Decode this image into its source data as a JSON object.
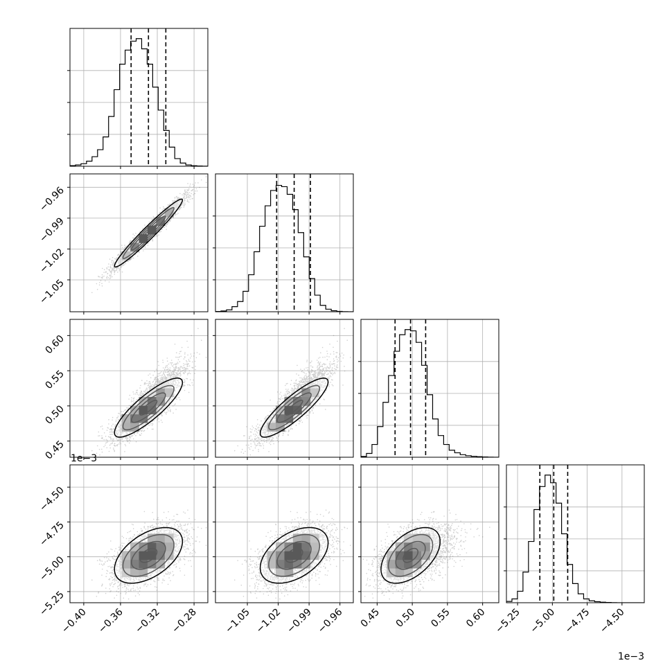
{
  "chart_data": {
    "type": "corner",
    "parameters": [
      {
        "index": 0,
        "range": [
          -0.415,
          -0.265
        ],
        "ticks": [
          -0.4,
          -0.36,
          -0.32,
          -0.28
        ],
        "tick_labels": [
          "−0.40",
          "−0.36",
          "−0.32",
          "−0.28"
        ],
        "quantiles": [
          -0.3485,
          -0.3296,
          -0.3107
        ],
        "mean": -0.3296,
        "sd": 0.0185
      },
      {
        "index": 1,
        "range": [
          -1.081,
          -0.947
        ],
        "ticks": [
          -1.05,
          -1.02,
          -0.99,
          -0.96
        ],
        "tick_labels": [
          "−1.05",
          "−1.02",
          "−0.99",
          "−0.96"
        ],
        "quantiles": [
          -1.0215,
          -1.0045,
          -0.9887
        ],
        "mean": -1.0045,
        "sd": 0.0165
      },
      {
        "index": 2,
        "range": [
          0.427,
          0.623
        ],
        "ticks": [
          0.45,
          0.5,
          0.55,
          0.6
        ],
        "tick_labels": [
          "0.45",
          "0.50",
          "0.55",
          "0.60"
        ],
        "quantiles": [
          0.4755,
          0.4975,
          0.519
        ],
        "mean": 0.4975,
        "sd": 0.021
      },
      {
        "index": 3,
        "range": [
          -5.33,
          -4.34
        ],
        "ticks": [
          -5.25,
          -5.0,
          -4.75,
          -4.5
        ],
        "tick_labels": [
          "−5.25",
          "−5.00",
          "−4.75",
          "−4.50"
        ],
        "quantiles": [
          -5.09,
          -4.99,
          -4.89
        ],
        "mean": -4.99,
        "sd": 0.1,
        "offset_text": "1e−3"
      }
    ],
    "correlations": [
      [
        1,
        0.97,
        0.85,
        0.5
      ],
      [
        0.97,
        1,
        0.87,
        0.45
      ],
      [
        0.85,
        0.87,
        1,
        0.5
      ],
      [
        0.5,
        0.45,
        0.5,
        1
      ]
    ],
    "histograms": [
      [
        0.005,
        0.01,
        0.02,
        0.04,
        0.075,
        0.13,
        0.23,
        0.39,
        0.6,
        0.8,
        0.91,
        0.98,
        1.0,
        0.92,
        0.8,
        0.62,
        0.44,
        0.28,
        0.15,
        0.06,
        0.025,
        0.01,
        0.004,
        0.002,
        0.001
      ],
      [
        0.002,
        0.006,
        0.015,
        0.04,
        0.08,
        0.16,
        0.29,
        0.47,
        0.67,
        0.83,
        0.95,
        0.99,
        0.98,
        0.92,
        0.8,
        0.62,
        0.43,
        0.26,
        0.13,
        0.05,
        0.02,
        0.008,
        0.003,
        0.001,
        0.0
      ],
      [
        0.006,
        0.03,
        0.1,
        0.24,
        0.43,
        0.64,
        0.83,
        0.96,
        1.0,
        0.99,
        0.9,
        0.72,
        0.49,
        0.3,
        0.17,
        0.1,
        0.055,
        0.035,
        0.02,
        0.012,
        0.007,
        0.004,
        0.002,
        0.001,
        0.0
      ],
      [
        0.01,
        0.03,
        0.09,
        0.24,
        0.48,
        0.73,
        0.91,
        1.0,
        0.94,
        0.78,
        0.54,
        0.3,
        0.15,
        0.07,
        0.03,
        0.015,
        0.008,
        0.004,
        0.002,
        0.001,
        0.0,
        0.0,
        0.0,
        0.0,
        0.0
      ]
    ],
    "grid": true
  }
}
